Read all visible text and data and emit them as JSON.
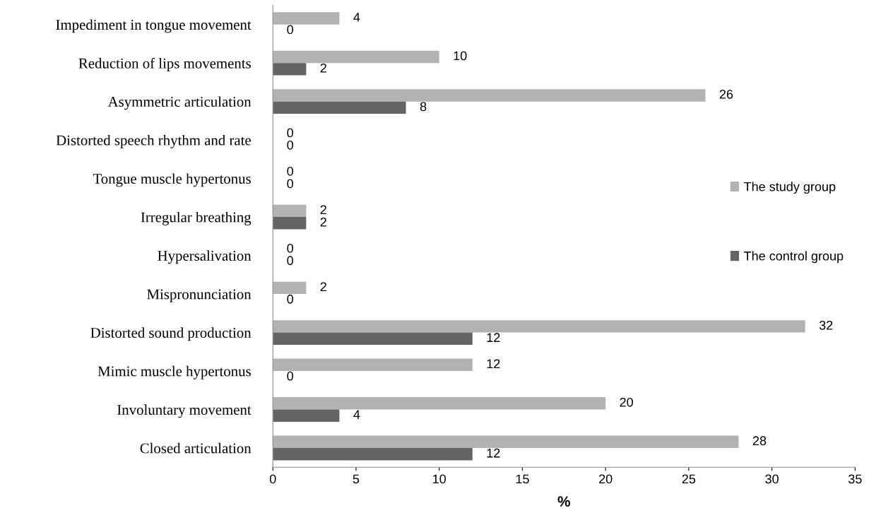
{
  "chart_data": {
    "type": "bar",
    "orientation": "horizontal",
    "categories": [
      "Impediment in tongue movement",
      "Reduction of lips movements",
      "Asymmetric articulation",
      "Distorted speech rhythm and rate",
      "Tongue muscle hypertonus",
      "Irregular breathing",
      "Hypersalivation",
      "Mispronunciation",
      "Distorted sound production",
      "Mimic muscle hypertonus",
      "Involuntary movement",
      "Closed articulation"
    ],
    "series": [
      {
        "name": "The study group",
        "color": "#b2b2b2",
        "values": [
          4,
          10,
          26,
          0,
          0,
          2,
          0,
          2,
          32,
          12,
          20,
          28
        ]
      },
      {
        "name": "The control group",
        "color": "#646464",
        "values": [
          0,
          2,
          8,
          0,
          0,
          2,
          0,
          0,
          12,
          0,
          4,
          12
        ]
      }
    ],
    "xlabel": "%",
    "xlim": [
      0,
      35
    ],
    "xticks": [
      0,
      5,
      10,
      15,
      20,
      25,
      30,
      35
    ],
    "data_labels": true,
    "grid": false,
    "legend": "right"
  }
}
